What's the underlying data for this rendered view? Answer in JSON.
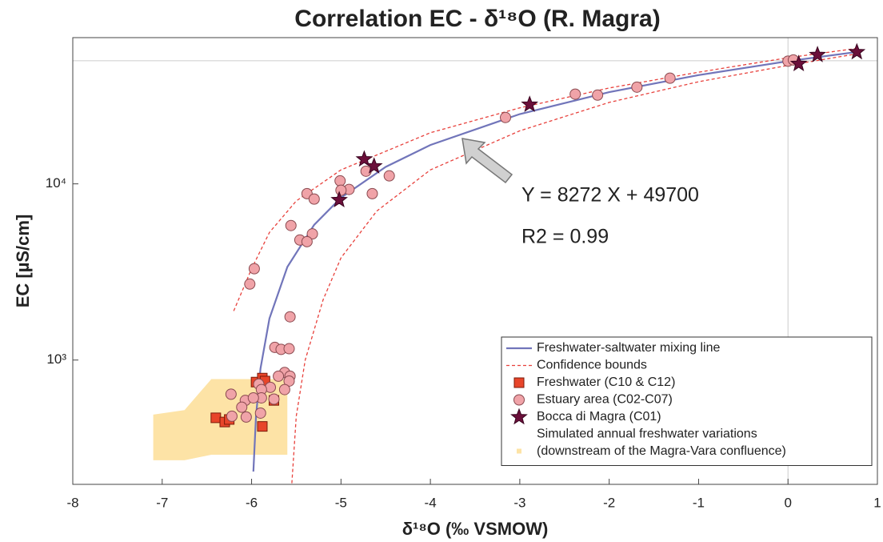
{
  "chart_data": {
    "type": "scatter",
    "title": "Correlation EC - δ¹⁸O (R. Magra)",
    "x_label": "δ¹⁸O (‰ VSMOW)",
    "y_label": "EC [µS/cm]",
    "annotations": [
      "Y = 8272 X + 49700",
      "R2 = 0.99"
    ],
    "xlim": [
      -8,
      1
    ],
    "xticks": [
      -8,
      -7,
      -6,
      -5,
      -4,
      -3,
      -2,
      -1,
      0,
      1
    ],
    "ylim": [
      197,
      67600
    ],
    "y_scale": "log",
    "yticks": [
      {
        "value": 1000,
        "label": "10³"
      },
      {
        "value": 10000,
        "label": "10⁴"
      }
    ],
    "hlines": [
      50000
    ],
    "vlines": [
      0
    ],
    "legend": "lower right",
    "series": [
      {
        "name": "Freshwater-saltwater mixing line",
        "color": "#7175ba",
        "style": "line",
        "x": [
          -5.98,
          -5.95,
          -5.9,
          -5.8,
          -5.6,
          -5.3,
          -5,
          -4.5,
          -4,
          -3,
          -2,
          -1,
          0,
          0.75
        ],
        "values": [
          233,
          482,
          895,
          1722,
          3377,
          5858,
          8340,
          12476,
          16612,
          24884,
          33156,
          41428,
          49700,
          55904
        ]
      },
      {
        "name": "Confidence bounds",
        "color": "#e8413c",
        "style": "dashed",
        "lines": [
          {
            "x": [
              -6.2,
              -6,
              -5.8,
              -5.5,
              -5,
              -4,
              -3,
              -2,
              -1,
              0,
              0.8
            ],
            "values": [
              1900,
              3300,
              5300,
              8000,
              12000,
              19500,
              27000,
              35000,
              43000,
              52000,
              59000
            ]
          },
          {
            "x": [
              -5.55,
              -5.5,
              -5.4,
              -5.2,
              -5,
              -4.6,
              -4,
              -3,
              -2,
              -1,
              0,
              0.8
            ],
            "values": [
              200,
              480,
              1000,
              2200,
              3800,
              7000,
              12000,
              20000,
              29000,
              38000,
              47000,
              55000
            ]
          }
        ]
      },
      {
        "name": "Freshwater (C10 & C12)",
        "color": "#e8452a",
        "style": "square",
        "x": [
          -6.4,
          -6.3,
          -6.25,
          -5.95,
          -5.88,
          -5.85,
          -5.75,
          -5.88
        ],
        "values": [
          470,
          445,
          460,
          750,
          790,
          760,
          590,
          420
        ]
      },
      {
        "name": "Estuary area (C02-C07)",
        "color": "#f0a3a8",
        "style": "circle",
        "x": [
          0,
          0.06,
          -1.32,
          -1.69,
          -2.13,
          -2.38,
          -3.16,
          -4.46,
          -4.72,
          -4.65,
          -4.91,
          -5.01,
          -5,
          -5.38,
          -5.3,
          -5.56,
          -5.32,
          -5.46,
          -5.38,
          -5.97,
          -6.02,
          -5.57,
          -5.74,
          -5.67,
          -5.58,
          -5.63,
          -5.57,
          -5.7,
          -5.58,
          -5.92,
          -5.79,
          -5.63,
          -5.89,
          -5.89,
          -5.75,
          -6.07,
          -5.98,
          -6.11,
          -6.23,
          -5.9,
          -6.06,
          -6.22
        ],
        "values": [
          49700,
          50500,
          39800,
          35400,
          31900,
          32300,
          23800,
          11100,
          11800,
          8800,
          9300,
          10400,
          9200,
          8800,
          8200,
          5800,
          5200,
          4800,
          4700,
          3300,
          2700,
          1760,
          1180,
          1150,
          1160,
          850,
          810,
          810,
          760,
          730,
          700,
          680,
          680,
          610,
          600,
          590,
          610,
          540,
          640,
          500,
          475,
          480
        ]
      },
      {
        "name": "Bocca di Magra (C01)",
        "color": "#6b0f3a",
        "style": "star",
        "x": [
          0.77,
          0.33,
          0.12,
          -2.89,
          -4.74,
          -4.63,
          -5.02
        ],
        "values": [
          56000,
          54000,
          48000,
          28200,
          13800,
          12600,
          8100
        ]
      },
      {
        "name": [
          "Simulated annual freshwater variations",
          "(downstream of the Magra-Vara confluence)"
        ],
        "color": "#fde3a6",
        "style": "area",
        "x": [
          -7.1,
          -6.75,
          -6.45,
          -5.6
        ],
        "values": [
          490,
          520,
          780,
          780
        ],
        "lower": [
          270,
          270,
          290,
          290
        ]
      }
    ]
  }
}
